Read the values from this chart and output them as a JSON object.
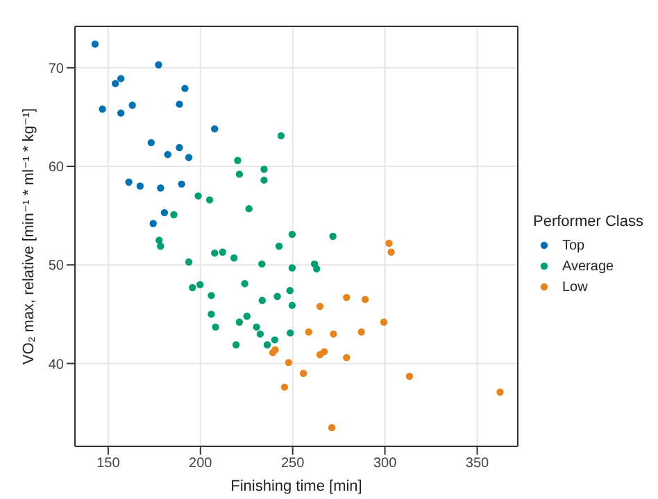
{
  "chart_data": {
    "type": "scatter",
    "xlabel": "Finishing time [min]",
    "ylabel": "VO₂ max, relative [min⁻¹ * ml⁻¹ * kg⁻¹]",
    "legend_title": "Performer Class",
    "xlim": [
      132,
      372
    ],
    "ylim": [
      31.6,
      74.2
    ],
    "xticks": [
      150,
      200,
      250,
      300,
      350
    ],
    "yticks": [
      40,
      50,
      60,
      70
    ],
    "grid": true,
    "legend": "right",
    "marker": "circle",
    "series": [
      {
        "name": "Top",
        "color": "#0072b2",
        "x": [
          142.9,
          146.9,
          153.9,
          156.9,
          156.9,
          163.1,
          177.3,
          191.6,
          188.6,
          207.7,
          173.3,
          182.3,
          188.6,
          193.7,
          161.2,
          167.3,
          178.4,
          189.8,
          180.5,
          174.4
        ],
        "values": [
          72.4,
          65.8,
          68.4,
          68.9,
          65.4,
          66.2,
          70.3,
          67.9,
          66.3,
          63.8,
          62.4,
          61.2,
          61.9,
          60.9,
          58.4,
          58.0,
          57.8,
          58.2,
          55.3,
          54.2
        ]
      },
      {
        "name": "Average",
        "color": "#009e73",
        "x": [
          185.6,
          198.8,
          205.0,
          220.2,
          221.1,
          226.3,
          234.5,
          234.5,
          243.7,
          177.6,
          178.4,
          193.7,
          207.7,
          212.0,
          218.2,
          233.3,
          242.6,
          249.7,
          249.7,
          261.8,
          263.0,
          271.8,
          195.7,
          199.8,
          205.9,
          224.0,
          233.5,
          241.7,
          248.5,
          205.9,
          208.2,
          221.1,
          225.2,
          230.4,
          232.4,
          219.3,
          236.2,
          240.3,
          249.7,
          248.7
        ],
        "values": [
          55.1,
          57.0,
          56.6,
          60.6,
          59.2,
          55.7,
          59.7,
          58.6,
          63.1,
          52.5,
          51.9,
          50.3,
          51.2,
          51.3,
          50.7,
          50.1,
          51.9,
          53.1,
          49.7,
          50.1,
          49.6,
          52.9,
          47.7,
          48.0,
          46.9,
          48.1,
          46.4,
          46.8,
          47.4,
          45.0,
          43.7,
          44.2,
          44.8,
          43.7,
          43.0,
          41.9,
          41.9,
          42.4,
          45.9,
          43.1
        ]
      },
      {
        "name": "Low",
        "color": "#e6851e",
        "x": [
          264.8,
          279.2,
          289.3,
          258.7,
          272.1,
          287.2,
          299.4,
          240.5,
          239.2,
          264.8,
          267.1,
          279.2,
          247.8,
          255.8,
          245.6,
          271.2,
          302.2,
          303.4,
          313.3,
          362.4
        ],
        "values": [
          45.8,
          46.7,
          46.5,
          43.2,
          43.0,
          43.2,
          44.2,
          41.4,
          41.1,
          40.9,
          41.2,
          40.6,
          40.1,
          39.0,
          37.6,
          33.5,
          52.2,
          51.3,
          38.7,
          37.1
        ]
      }
    ]
  }
}
